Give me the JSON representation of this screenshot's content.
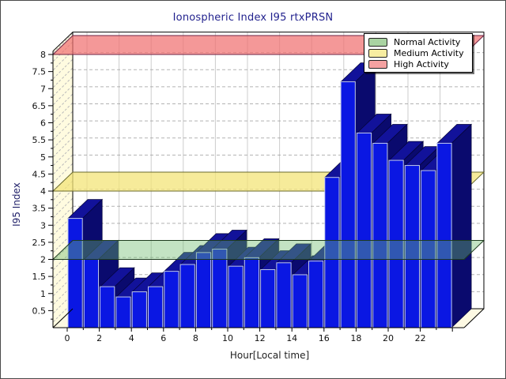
{
  "window": {
    "background": "#ffffff",
    "frame_color": "#4a4a4a"
  },
  "chart_data": {
    "type": "bar",
    "projection": "3d",
    "title": "Ionospheric Index I95 rtxPRSN",
    "xlabel": "Hour[Local time]",
    "ylabel": "I95 Index",
    "x": [
      0,
      1,
      2,
      3,
      4,
      5,
      6,
      7,
      8,
      9,
      10,
      11,
      12,
      13,
      14,
      15,
      16,
      17,
      18,
      19,
      20,
      21,
      22,
      23
    ],
    "values": [
      3.2,
      2.0,
      1.2,
      0.9,
      1.05,
      1.2,
      1.65,
      1.85,
      2.2,
      2.3,
      1.8,
      2.05,
      1.7,
      1.9,
      1.55,
      1.95,
      4.4,
      7.2,
      5.7,
      5.4,
      4.9,
      4.75,
      4.6,
      5.4
    ],
    "ylim": [
      0,
      8.1
    ],
    "xticks": [
      0,
      2,
      4,
      6,
      8,
      10,
      12,
      14,
      16,
      18,
      20,
      22
    ],
    "yticks": [
      0.5,
      1,
      1.5,
      2,
      2.5,
      3,
      3.5,
      4,
      4.5,
      5,
      5.5,
      6,
      6.5,
      7,
      7.5,
      8
    ],
    "grid": true,
    "legend_position": "top-right",
    "zones": [
      {
        "label": "Normal Activity",
        "value": 2.0,
        "swatch": "#a9d3a2",
        "fill": "rgba(105,185,105,0.40)",
        "edge": "#1e3c1e",
        "drawn_over_bars": true
      },
      {
        "label": "Medium Activity",
        "value": 4.0,
        "swatch": "#f7eda1",
        "fill": "rgba(243,228,120,0.75)",
        "edge": "#6b6b2d",
        "drawn_over_bars": false
      },
      {
        "label": "High Activity",
        "value": 8.0,
        "swatch": "#f4a1a1",
        "fill": "rgba(240,112,112,0.72)",
        "edge": "#6e2445",
        "drawn_over_bars": false
      }
    ],
    "colors": {
      "bar_front": "#0a17e3",
      "bar_top": "#12129a",
      "bar_side": "#0a0a6e",
      "bar_front_outline": "#bfc8ee",
      "bar_dark_outline": "#04043a",
      "left_wall": "#fffbe0",
      "floor": "#fdf9e3",
      "back_wall": "#ffffff",
      "grid_h": "#a0a0a0",
      "grid_v": "#cccccc",
      "frame": "#000000",
      "title_color": "#22228e",
      "tick_label_color": "#111111"
    }
  }
}
